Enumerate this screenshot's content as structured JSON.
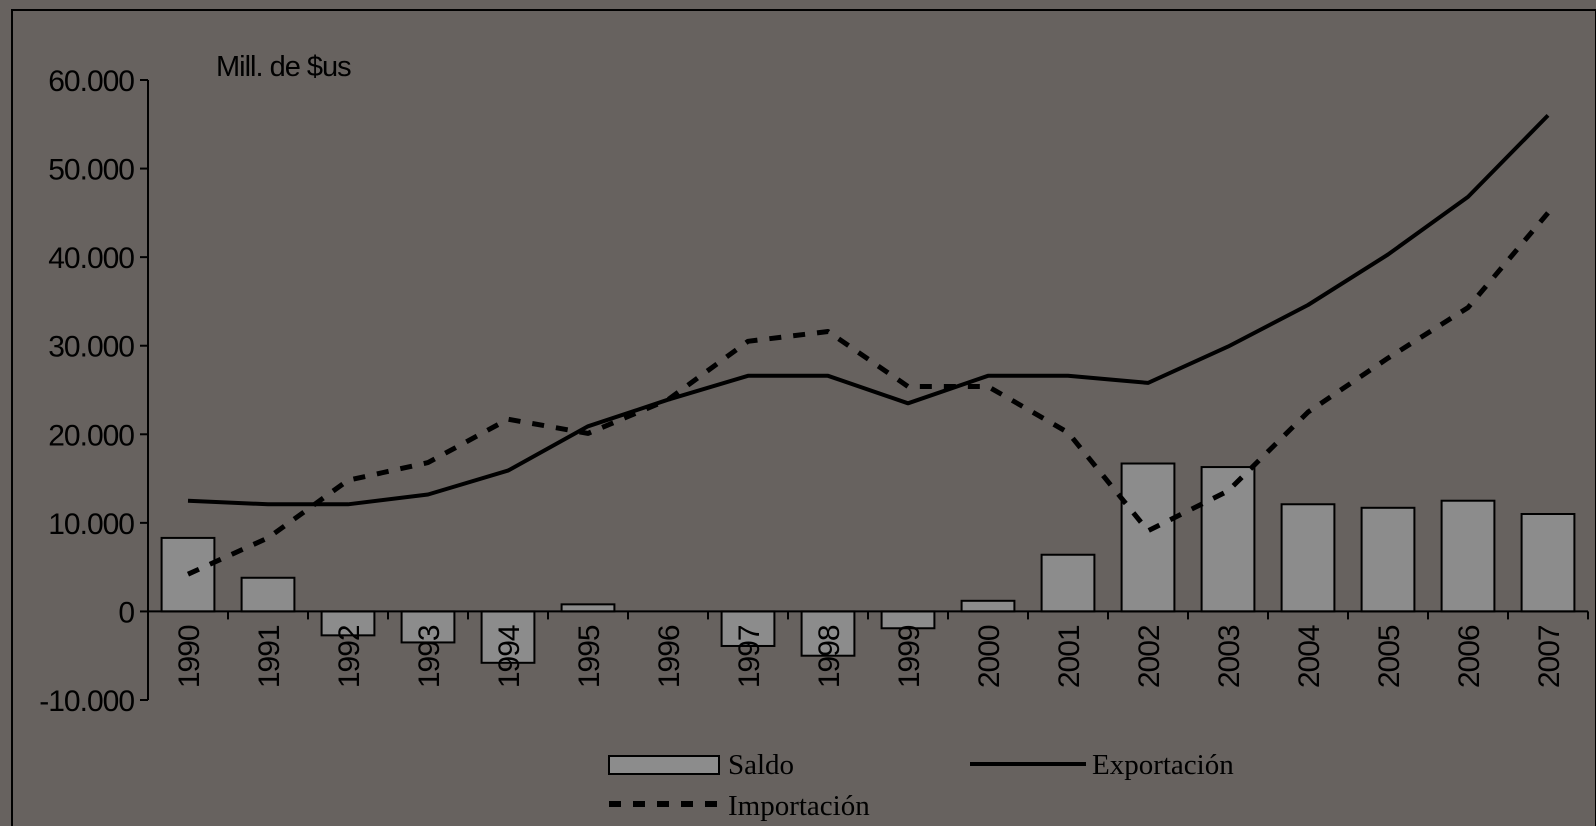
{
  "chart_data": {
    "type": "bar",
    "title": "",
    "unit_label": "Mill. de $us",
    "xlabel": "",
    "ylabel": "",
    "categories": [
      "1990",
      "1991",
      "1992",
      "1993",
      "1994",
      "1995",
      "1996",
      "1997",
      "1998",
      "1999",
      "2000",
      "2001",
      "2002",
      "2003",
      "2004",
      "2005",
      "2006",
      "2007"
    ],
    "ylim": [
      -10000,
      60000
    ],
    "yticks": [
      -10000,
      0,
      10000,
      20000,
      30000,
      40000,
      50000,
      60000
    ],
    "ytick_labels": [
      "-10.000",
      "0",
      "10.000",
      "20.000",
      "30.000",
      "40.000",
      "50.000",
      "60.000"
    ],
    "grid": false,
    "legend_position": "bottom",
    "series": [
      {
        "name": "Saldo",
        "kind": "bar",
        "color": "#8c8c8c",
        "values": [
          8300,
          3800,
          -2700,
          -3500,
          -5800,
          800,
          0,
          -3900,
          -5000,
          -1900,
          1200,
          6400,
          16700,
          16300,
          12100,
          11700,
          12500,
          11000
        ]
      },
      {
        "name": "Exportación",
        "kind": "line",
        "style": "solid",
        "color": "#000000",
        "values": [
          12500,
          12100,
          12100,
          13200,
          15900,
          20900,
          23900,
          26600,
          26600,
          23500,
          26600,
          26600,
          25800,
          29900,
          34600,
          40300,
          46800,
          56000
        ]
      },
      {
        "name": "Importación",
        "kind": "line",
        "style": "dashed",
        "color": "#000000",
        "values": [
          4200,
          8300,
          14800,
          16800,
          21700,
          20100,
          23900,
          30500,
          31600,
          25400,
          25400,
          20200,
          9100,
          13600,
          22500,
          28600,
          34300,
          45000
        ]
      }
    ]
  }
}
